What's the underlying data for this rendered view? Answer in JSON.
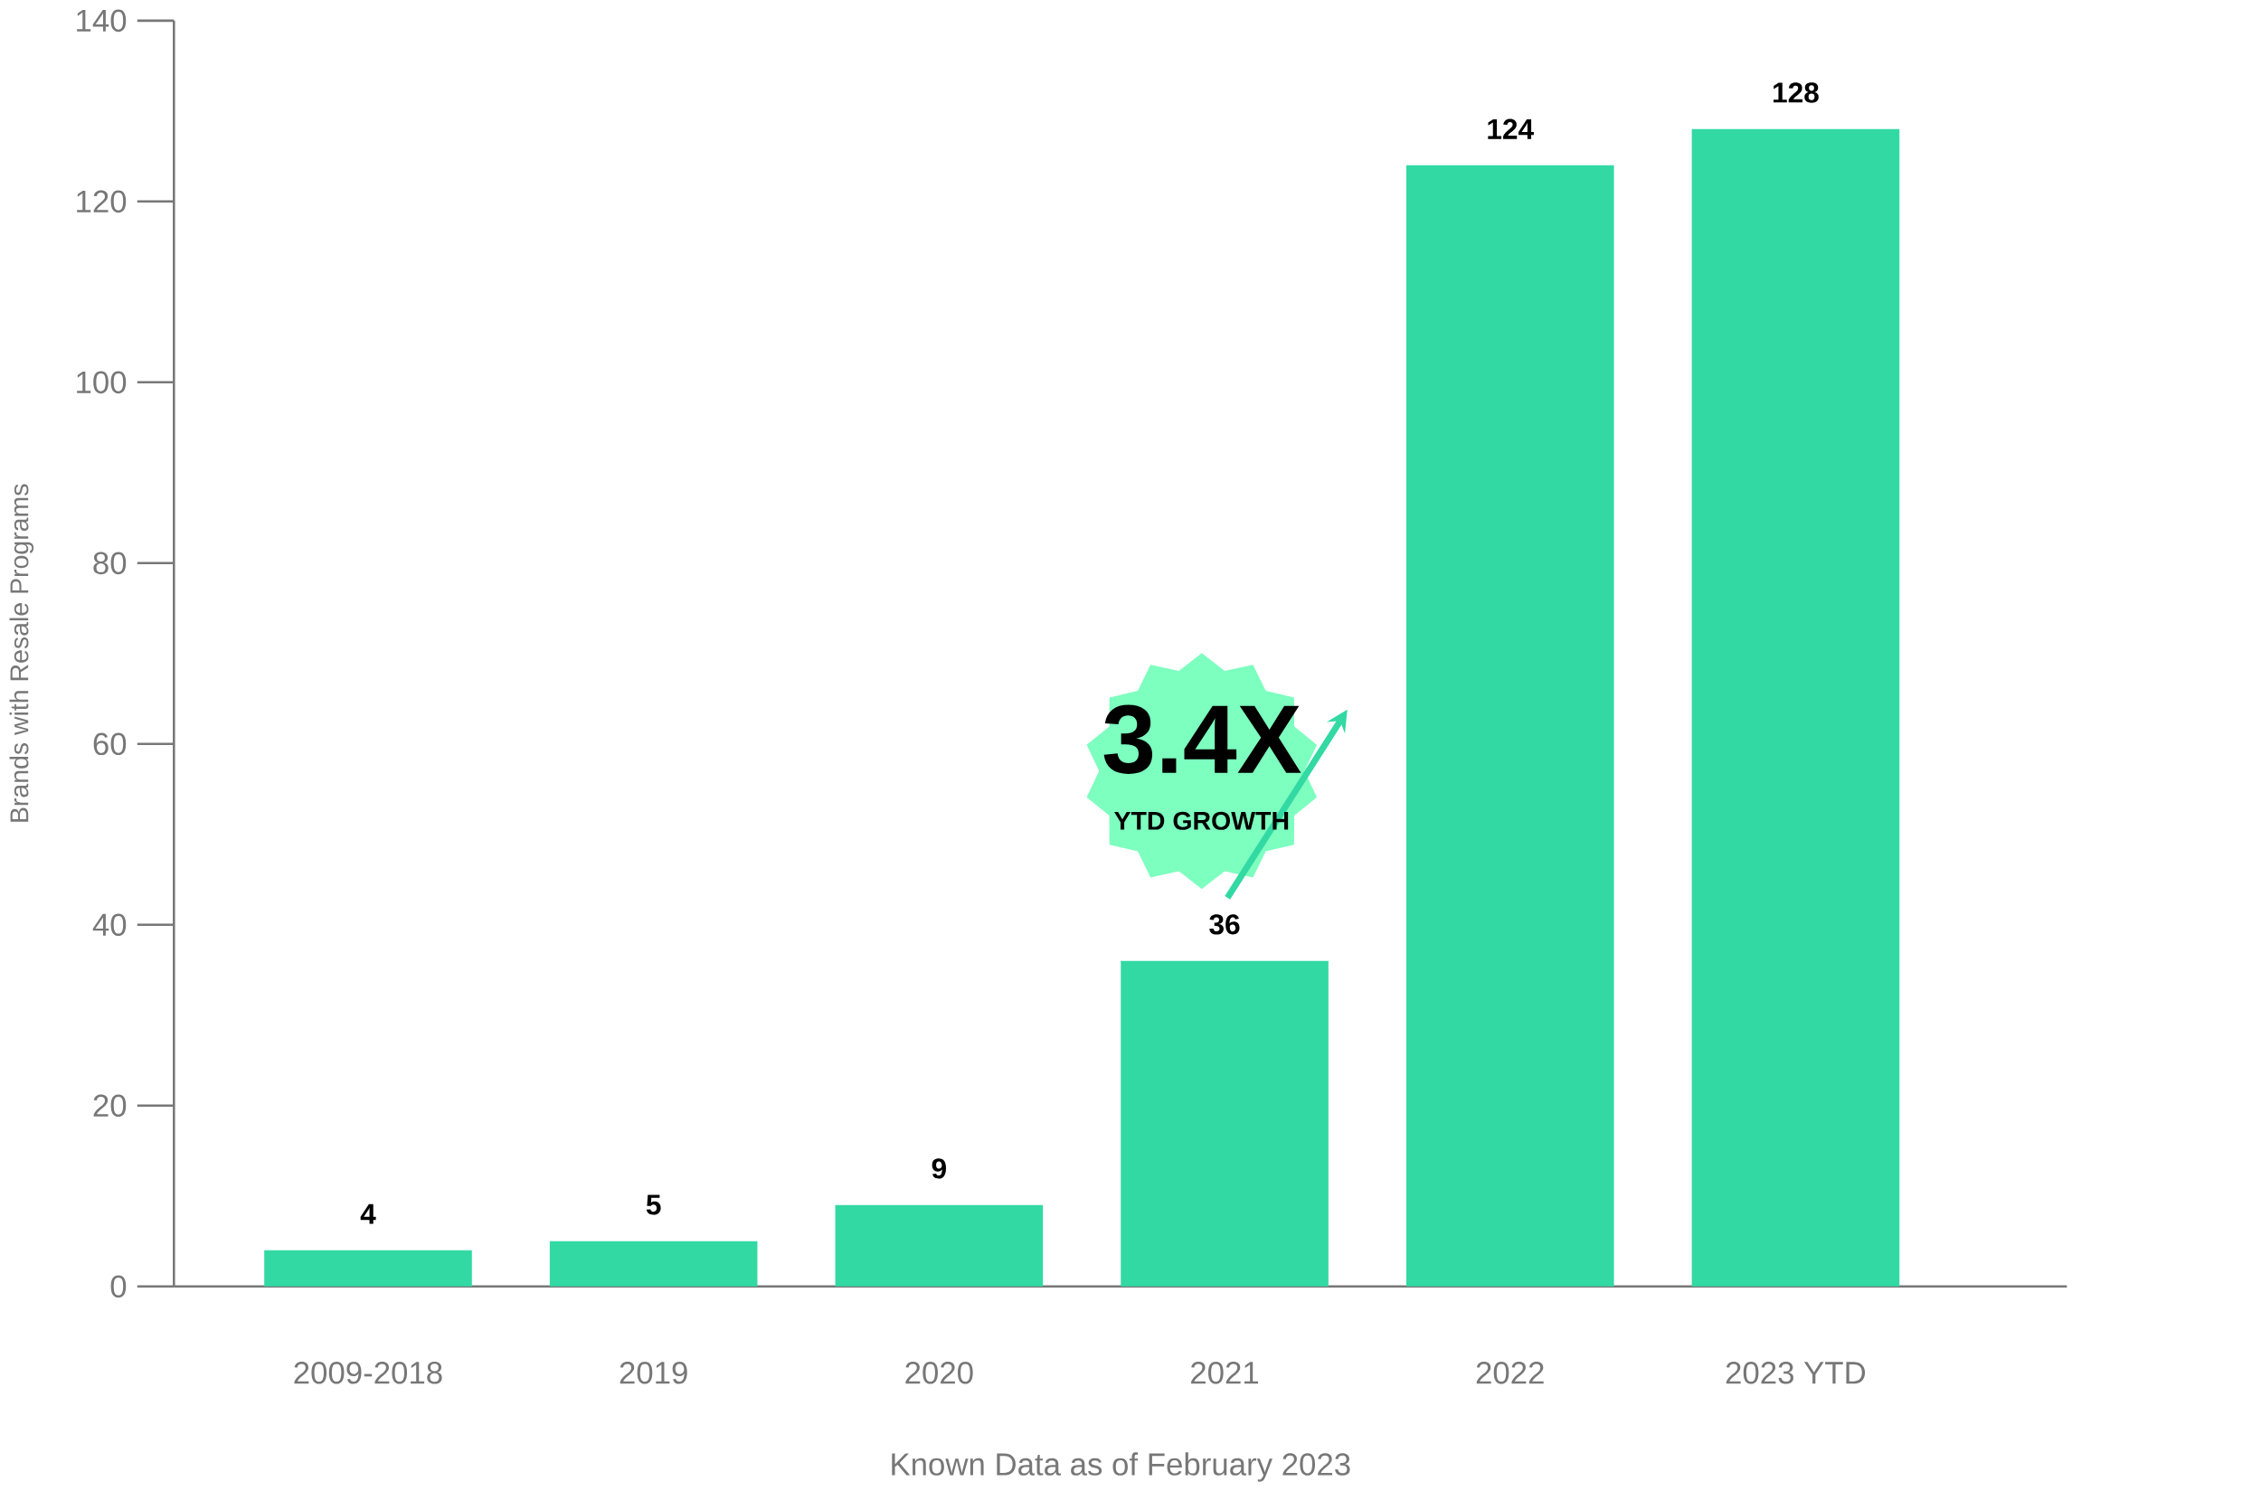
{
  "chart_data": {
    "type": "bar",
    "xlabel": "Known Data as of February 2023",
    "ylabel": "Brands with Resale Programs",
    "categories": [
      "2009-2018",
      "2019",
      "2020",
      "2021",
      "2022",
      "2023 YTD"
    ],
    "values": [
      4,
      5,
      9,
      36,
      124,
      128
    ],
    "color": "#32d9a3",
    "data_labels": true,
    "ylim": [
      0,
      140
    ],
    "yticks": [
      0,
      20,
      40,
      60,
      80,
      100,
      120,
      140
    ],
    "annotations": [
      "3.4X",
      "YTD GROWTH"
    ]
  }
}
